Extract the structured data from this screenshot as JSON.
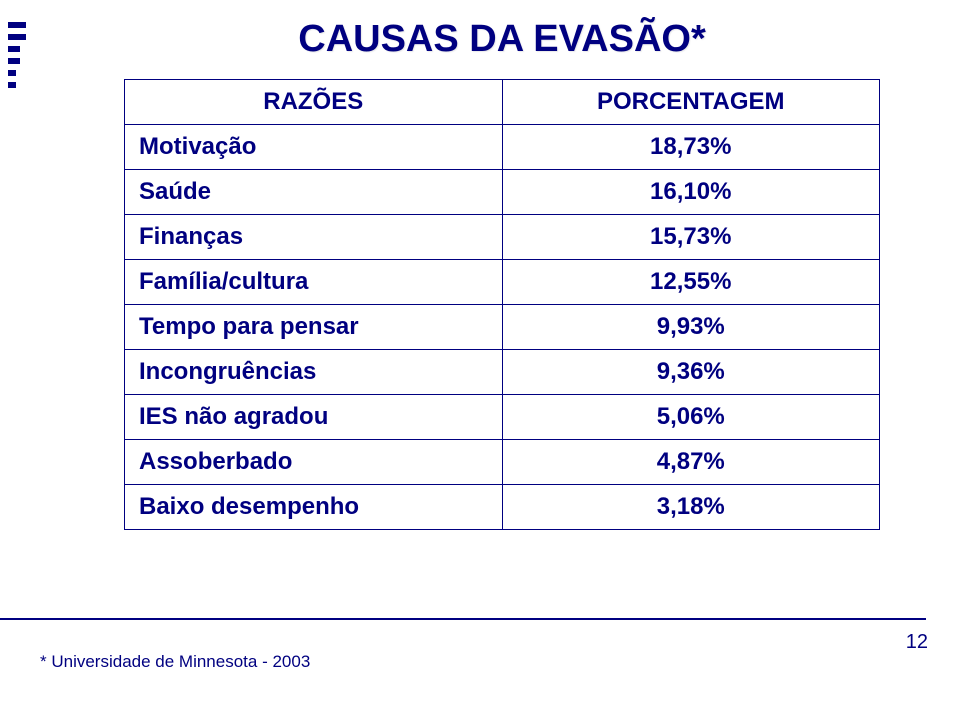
{
  "slide": {
    "title": "CAUSAS DA EVASÃO*",
    "table": {
      "header_left": "RAZÕES",
      "header_right": "PORCENTAGEM",
      "rows": [
        {
          "label": "Motivação",
          "value": "18,73%"
        },
        {
          "label": "Saúde",
          "value": "16,10%"
        },
        {
          "label": "Finanças",
          "value": "15,73%"
        },
        {
          "label": "Família/cultura",
          "value": "12,55%"
        },
        {
          "label": "Tempo para pensar",
          "value": "9,93%"
        },
        {
          "label": "Incongruências",
          "value": "9,36%"
        },
        {
          "label": "IES não agradou",
          "value": "5,06%"
        },
        {
          "label": "Assoberbado",
          "value": "4,87%"
        },
        {
          "label": "Baixo desempenho",
          "value": "3,18%"
        }
      ]
    },
    "footnote": "* Universidade de Minnesota - 2003",
    "page_number": "12",
    "colors": {
      "primary": "#000080",
      "background": "#ffffff"
    }
  }
}
